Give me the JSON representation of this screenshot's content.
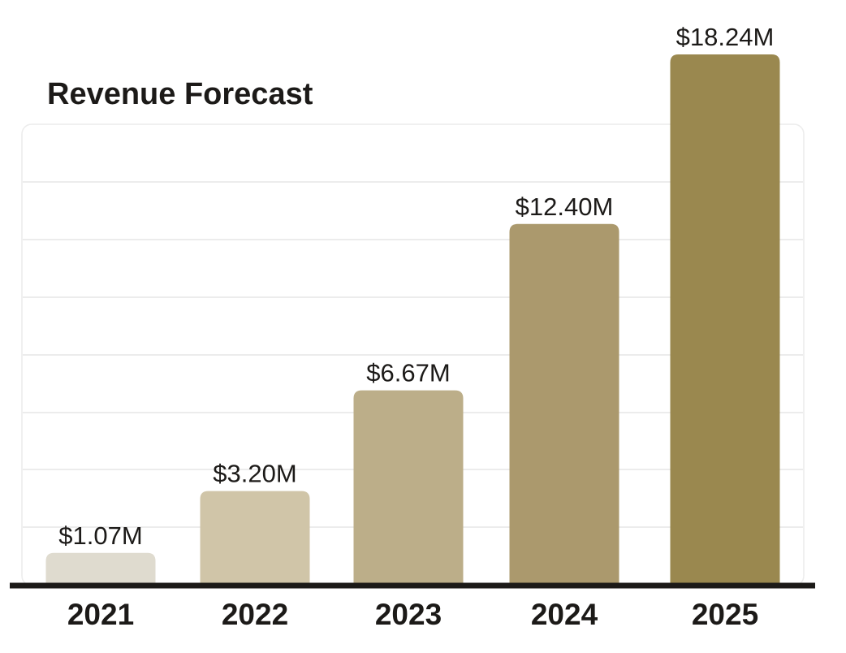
{
  "chart_data": {
    "type": "bar",
    "title": "Revenue Forecast",
    "xlabel": "",
    "ylabel": "",
    "categories": [
      "2021",
      "2022",
      "2023",
      "2024",
      "2025"
    ],
    "values": [
      1.07,
      3.2,
      6.67,
      12.4,
      18.24
    ],
    "data_labels": [
      "$1.07M",
      "$3.20M",
      "$6.67M",
      "$12.40M",
      "$18.24M"
    ],
    "unit": "$M",
    "ylim": [
      0,
      18.24
    ],
    "grid": true,
    "legend": "none",
    "colors": [
      "#dfdbcf",
      "#d0c5a8",
      "#bcae89",
      "#ab996d",
      "#9a884f"
    ],
    "baseline_color": "#1c1a18",
    "grid_color": "#e6e6e6",
    "text_color": "#1c1a18"
  }
}
